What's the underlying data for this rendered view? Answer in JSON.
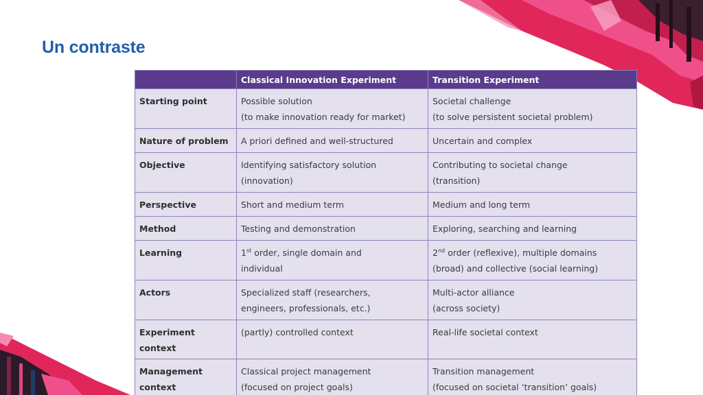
{
  "slide": {
    "title": "Un contraste"
  },
  "colors": {
    "title": "#1f5fa8",
    "header_bg": "#5b3b8c",
    "cell_bg": "#e4e0ee",
    "accent": "#e1265a"
  },
  "table": {
    "headers": [
      "",
      "Classical Innovation Experiment",
      "Transition Experiment"
    ],
    "rows": [
      {
        "label": "Starting point",
        "classical": [
          "Possible solution",
          "(to make innovation ready for market)"
        ],
        "transition": [
          "Societal challenge",
          "(to solve persistent societal problem)"
        ]
      },
      {
        "label": "Nature of problem",
        "classical": [
          "A priori defined and well-structured"
        ],
        "transition": [
          "Uncertain and complex"
        ]
      },
      {
        "label": "Objective",
        "classical": [
          "Identifying satisfactory solution",
          "(innovation)"
        ],
        "transition": [
          "Contributing to societal change",
          "(transition)"
        ]
      },
      {
        "label": "Perspective",
        "classical": [
          "Short and medium term"
        ],
        "transition": [
          "Medium and long term"
        ]
      },
      {
        "label": "Method",
        "classical": [
          "Testing and demonstration"
        ],
        "transition": [
          "Exploring, searching and learning"
        ]
      },
      {
        "label": "Learning",
        "classical_num": "1",
        "classical_sup": "st",
        "classical": [
          " order, single domain and",
          "individual"
        ],
        "transition_num": "2",
        "transition_sup": "nd",
        "transition": [
          " order (reflexive), multiple domains",
          "(broad) and collective (social learning)"
        ]
      },
      {
        "label": "Actors",
        "classical": [
          "Specialized staff (researchers,",
          "engineers, professionals, etc.)"
        ],
        "transition": [
          "Multi-actor alliance",
          "(across society)"
        ]
      },
      {
        "label": "Experiment context",
        "classical": [
          "(partly) controlled context"
        ],
        "transition": [
          "Real-life societal context"
        ]
      },
      {
        "label_lines": [
          "Management",
          "context"
        ],
        "classical": [
          "Classical project management",
          "(focused on project goals)"
        ],
        "transition": [
          "Transition management",
          "(focused on societal ‘transition’ goals)"
        ]
      }
    ]
  }
}
